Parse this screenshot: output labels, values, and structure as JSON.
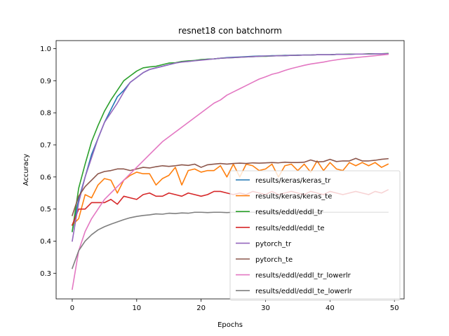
{
  "chart_data": {
    "type": "line",
    "title": "resnet18 con batchnorm",
    "xlabel": "Epochs",
    "ylabel": "Accuracy",
    "xlim": [
      -2.5,
      51.5
    ],
    "ylim": [
      0.22,
      1.025
    ],
    "xticks": [
      0,
      10,
      20,
      30,
      40,
      50
    ],
    "yticks": [
      0.3,
      0.4,
      0.5,
      0.6,
      0.7,
      0.8,
      0.9,
      1.0
    ],
    "ytick_labels": [
      "0.3",
      "0.4",
      "0.5",
      "0.6",
      "0.7",
      "0.8",
      "0.9",
      "1.0"
    ],
    "grid": false,
    "legend_position": "lower-right",
    "x": [
      0,
      1,
      2,
      3,
      4,
      5,
      6,
      7,
      8,
      9,
      10,
      11,
      12,
      13,
      14,
      15,
      16,
      17,
      18,
      19,
      20,
      21,
      22,
      23,
      24,
      25,
      26,
      27,
      28,
      29,
      30,
      31,
      32,
      33,
      34,
      35,
      36,
      37,
      38,
      39,
      40,
      41,
      42,
      43,
      44,
      45,
      46,
      47,
      48,
      49
    ],
    "series": [
      {
        "name": "results/keras/keras_tr",
        "color": "#1f77b4",
        "values": [
          0.43,
          0.53,
          0.6,
          0.67,
          0.72,
          0.77,
          0.81,
          0.85,
          0.87,
          0.895,
          0.91,
          0.925,
          0.935,
          0.94,
          0.945,
          0.95,
          0.955,
          0.96,
          0.96,
          0.963,
          0.965,
          0.967,
          0.968,
          0.97,
          0.972,
          0.973,
          0.974,
          0.975,
          0.976,
          0.977,
          0.977,
          0.978,
          0.978,
          0.979,
          0.979,
          0.98,
          0.98,
          0.98,
          0.981,
          0.981,
          0.981,
          0.982,
          0.982,
          0.982,
          0.983,
          0.983,
          0.983,
          0.984,
          0.984,
          0.984
        ]
      },
      {
        "name": "results/keras/keras_te",
        "color": "#ff7f0e",
        "values": [
          0.45,
          0.47,
          0.545,
          0.535,
          0.575,
          0.595,
          0.59,
          0.55,
          0.59,
          0.605,
          0.615,
          0.61,
          0.61,
          0.575,
          0.595,
          0.605,
          0.63,
          0.575,
          0.62,
          0.625,
          0.615,
          0.62,
          0.62,
          0.635,
          0.6,
          0.64,
          0.6,
          0.64,
          0.635,
          0.62,
          0.625,
          0.64,
          0.6,
          0.635,
          0.64,
          0.62,
          0.64,
          0.615,
          0.65,
          0.62,
          0.645,
          0.625,
          0.62,
          0.645,
          0.635,
          0.645,
          0.635,
          0.645,
          0.63,
          0.64
        ]
      },
      {
        "name": "results/eddl/eddl_tr",
        "color": "#2ca02c",
        "values": [
          0.43,
          0.565,
          0.64,
          0.71,
          0.76,
          0.805,
          0.84,
          0.87,
          0.9,
          0.915,
          0.93,
          0.94,
          0.943,
          0.945,
          0.95,
          0.955,
          0.956,
          0.96,
          0.962,
          0.963,
          0.966,
          0.967,
          0.968,
          0.97,
          0.971,
          0.972,
          0.973,
          0.974,
          0.975,
          0.976,
          0.976,
          0.977,
          0.978,
          0.978,
          0.979,
          0.979,
          0.98,
          0.98,
          0.981,
          0.981,
          0.981,
          0.982,
          0.982,
          0.983,
          0.983,
          0.983,
          0.984,
          0.984,
          0.984,
          0.985
        ]
      },
      {
        "name": "results/eddl/eddl_te",
        "color": "#d62728",
        "values": [
          0.45,
          0.5,
          0.5,
          0.52,
          0.52,
          0.52,
          0.53,
          0.515,
          0.54,
          0.535,
          0.53,
          0.545,
          0.55,
          0.54,
          0.54,
          0.55,
          0.545,
          0.54,
          0.55,
          0.545,
          0.54,
          0.545,
          0.555,
          0.555,
          0.55,
          0.545,
          0.55,
          0.545,
          0.555,
          0.55,
          0.545,
          0.555,
          0.545,
          0.55,
          0.555,
          0.55,
          0.545,
          0.555,
          0.55,
          0.545,
          0.555,
          0.55,
          0.545,
          0.55,
          0.555,
          0.55,
          0.545,
          0.555,
          0.55,
          0.56
        ]
      },
      {
        "name": "pytorch_tr",
        "color": "#9467bd",
        "values": [
          0.4,
          0.52,
          0.6,
          0.66,
          0.72,
          0.77,
          0.8,
          0.83,
          0.865,
          0.895,
          0.91,
          0.925,
          0.935,
          0.94,
          0.945,
          0.95,
          0.955,
          0.958,
          0.96,
          0.962,
          0.964,
          0.966,
          0.968,
          0.97,
          0.971,
          0.972,
          0.973,
          0.974,
          0.975,
          0.976,
          0.977,
          0.977,
          0.978,
          0.978,
          0.979,
          0.979,
          0.98,
          0.98,
          0.981,
          0.981,
          0.981,
          0.982,
          0.982,
          0.982,
          0.983,
          0.983,
          0.983,
          0.984,
          0.984,
          0.984
        ]
      },
      {
        "name": "pytorch_te",
        "color": "#8c564b",
        "values": [
          0.48,
          0.54,
          0.57,
          0.59,
          0.61,
          0.617,
          0.62,
          0.625,
          0.625,
          0.62,
          0.625,
          0.63,
          0.628,
          0.632,
          0.635,
          0.633,
          0.635,
          0.638,
          0.636,
          0.64,
          0.63,
          0.638,
          0.64,
          0.642,
          0.64,
          0.642,
          0.643,
          0.642,
          0.644,
          0.643,
          0.644,
          0.645,
          0.644,
          0.646,
          0.645,
          0.645,
          0.646,
          0.653,
          0.647,
          0.648,
          0.655,
          0.648,
          0.65,
          0.65,
          0.658,
          0.65,
          0.65,
          0.652,
          0.655,
          0.657
        ]
      },
      {
        "name": "results/eddl/eddl_tr_lowerlr",
        "color": "#e377c2",
        "values": [
          0.25,
          0.37,
          0.43,
          0.47,
          0.5,
          0.53,
          0.55,
          0.57,
          0.59,
          0.61,
          0.63,
          0.65,
          0.67,
          0.69,
          0.71,
          0.725,
          0.74,
          0.755,
          0.77,
          0.785,
          0.8,
          0.815,
          0.83,
          0.84,
          0.855,
          0.865,
          0.875,
          0.885,
          0.895,
          0.905,
          0.912,
          0.92,
          0.925,
          0.932,
          0.938,
          0.943,
          0.948,
          0.952,
          0.955,
          0.958,
          0.962,
          0.965,
          0.968,
          0.97,
          0.972,
          0.974,
          0.976,
          0.978,
          0.98,
          0.982
        ]
      },
      {
        "name": "results/eddl/eddl_te_lowerlr",
        "color": "#7f7f7f",
        "values": [
          0.315,
          0.37,
          0.4,
          0.42,
          0.435,
          0.445,
          0.453,
          0.46,
          0.467,
          0.473,
          0.477,
          0.48,
          0.482,
          0.485,
          0.484,
          0.487,
          0.486,
          0.488,
          0.487,
          0.49,
          0.49,
          0.489,
          0.49,
          0.49,
          0.489,
          0.49,
          0.49,
          0.491,
          0.49,
          0.49,
          0.49,
          0.491,
          0.49,
          0.49,
          0.49,
          0.491,
          0.49,
          0.49,
          0.49,
          0.49,
          0.49,
          0.49,
          0.49,
          0.49,
          0.49,
          0.49,
          0.49,
          0.49,
          0.49,
          0.49
        ]
      }
    ]
  }
}
